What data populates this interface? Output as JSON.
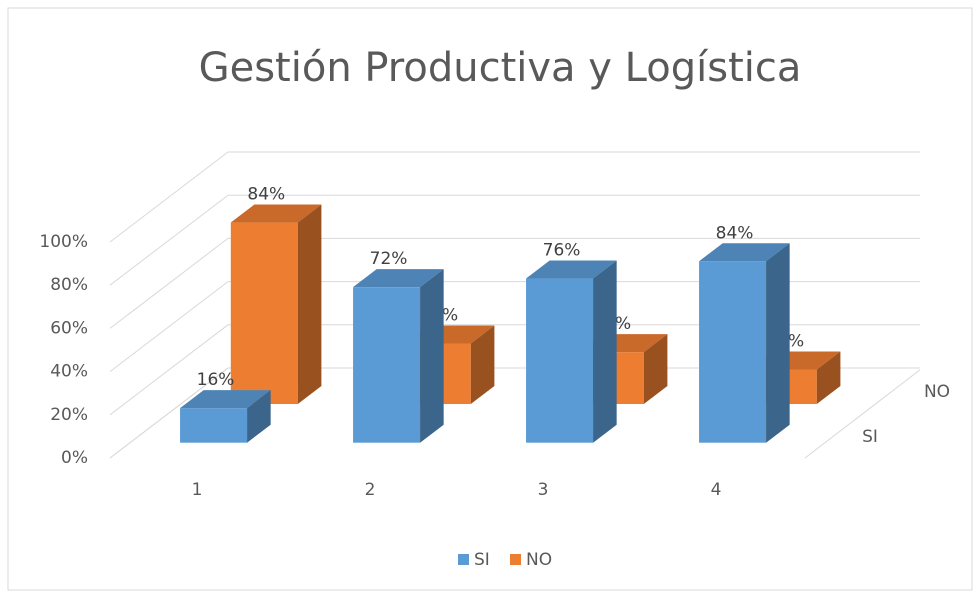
{
  "chart_data": {
    "type": "bar3d",
    "title": "Gestión Productiva y Logística",
    "categories": [
      "1",
      "2",
      "3",
      "4"
    ],
    "series": [
      {
        "name": "SI",
        "color": "#5b9bd5",
        "values": [
          16,
          72,
          76,
          84
        ],
        "value_labels": [
          "16%",
          "72%",
          "76%",
          "84%"
        ]
      },
      {
        "name": "NO",
        "color": "#ed7d31",
        "values": [
          84,
          28,
          24,
          16
        ],
        "value_labels": [
          "84%",
          "28%",
          "24%",
          "16%"
        ]
      }
    ],
    "ylim": [
      0,
      100
    ],
    "yticks": [
      {
        "value": 0,
        "label": "0%"
      },
      {
        "value": 20,
        "label": "20%"
      },
      {
        "value": 40,
        "label": "40%"
      },
      {
        "value": 60,
        "label": "60%"
      },
      {
        "value": 80,
        "label": "80%"
      },
      {
        "value": 100,
        "label": "100%"
      }
    ],
    "grid": true,
    "legend": "bottom"
  }
}
